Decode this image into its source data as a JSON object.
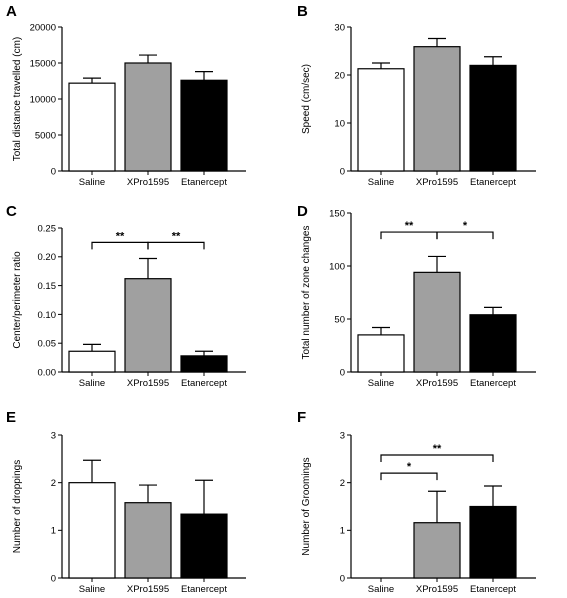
{
  "figure": {
    "category_labels": [
      "Saline",
      "XPro1595",
      "Etanercept"
    ],
    "bar_colors": [
      "#ffffff",
      "#a0a0a0",
      "#000000"
    ],
    "stroke_color": "#000000"
  },
  "chart_data": [
    {
      "panel": "A",
      "type": "bar",
      "categories": [
        "Saline",
        "XPro1595",
        "Etanercept"
      ],
      "values": [
        12200,
        15000,
        12600
      ],
      "errors": [
        700,
        1100,
        1200
      ],
      "ylabel": "Total distance travelled (cm)",
      "ylim": [
        0,
        20000
      ],
      "yticks": [
        0,
        5000,
        10000,
        15000,
        20000
      ],
      "ytick_labels": [
        "0",
        "5000",
        "10000",
        "15000",
        "20000"
      ],
      "significance": []
    },
    {
      "panel": "B",
      "type": "bar",
      "categories": [
        "Saline",
        "XPro1595",
        "Etanercept"
      ],
      "values": [
        21.3,
        25.9,
        22.0
      ],
      "errors": [
        1.2,
        1.7,
        1.8
      ],
      "ylabel": "Speed (cm/sec)",
      "ylim": [
        0,
        30
      ],
      "yticks": [
        0,
        10,
        20,
        30
      ],
      "ytick_labels": [
        "0",
        "10",
        "20",
        "30"
      ],
      "significance": []
    },
    {
      "panel": "C",
      "type": "bar",
      "categories": [
        "Saline",
        "XPro1595",
        "Etanercept"
      ],
      "values": [
        0.036,
        0.162,
        0.028
      ],
      "errors": [
        0.012,
        0.035,
        0.008
      ],
      "ylabel": "Center/perimeter ratio",
      "ylim": [
        0,
        0.25
      ],
      "yticks": [
        0,
        0.05,
        0.1,
        0.15,
        0.2,
        0.25
      ],
      "ytick_labels": [
        "0.00",
        "0.05",
        "0.10",
        "0.15",
        "0.20",
        "0.25"
      ],
      "significance": [
        {
          "from": 0,
          "to": 1,
          "label": "**",
          "y": 0.225
        },
        {
          "from": 1,
          "to": 2,
          "label": "**",
          "y": 0.225
        }
      ]
    },
    {
      "panel": "D",
      "type": "bar",
      "categories": [
        "Saline",
        "XPro1595",
        "Etanercept"
      ],
      "values": [
        35,
        94,
        54
      ],
      "errors": [
        7,
        15,
        7
      ],
      "ylabel": "Total number of zone changes",
      "ylim": [
        0,
        150
      ],
      "yticks": [
        0,
        50,
        100,
        150
      ],
      "ytick_labels": [
        "0",
        "50",
        "100",
        "150"
      ],
      "significance": [
        {
          "from": 0,
          "to": 1,
          "label": "**",
          "y": 132
        },
        {
          "from": 1,
          "to": 2,
          "label": "*",
          "y": 132
        }
      ]
    },
    {
      "panel": "E",
      "type": "bar",
      "categories": [
        "Saline",
        "XPro1595",
        "Etanercept"
      ],
      "values": [
        2.0,
        1.58,
        1.34
      ],
      "errors": [
        0.47,
        0.37,
        0.71
      ],
      "ylabel": "Number of droppings",
      "ylim": [
        0,
        3
      ],
      "yticks": [
        0,
        1,
        2,
        3
      ],
      "ytick_labels": [
        "0",
        "1",
        "2",
        "3"
      ],
      "significance": []
    },
    {
      "panel": "F",
      "type": "bar",
      "categories": [
        "Saline",
        "XPro1595",
        "Etanercept"
      ],
      "values": [
        0,
        1.16,
        1.5
      ],
      "errors": [
        0,
        0.66,
        0.43
      ],
      "ylabel": "Number of Groomings",
      "ylim": [
        0,
        3
      ],
      "yticks": [
        0,
        1,
        2,
        3
      ],
      "ytick_labels": [
        "0",
        "1",
        "2",
        "3"
      ],
      "significance": [
        {
          "from": 0,
          "to": 1,
          "label": "*",
          "y": 2.2
        },
        {
          "from": 0,
          "to": 2,
          "label": "**",
          "y": 2.58
        }
      ]
    }
  ]
}
